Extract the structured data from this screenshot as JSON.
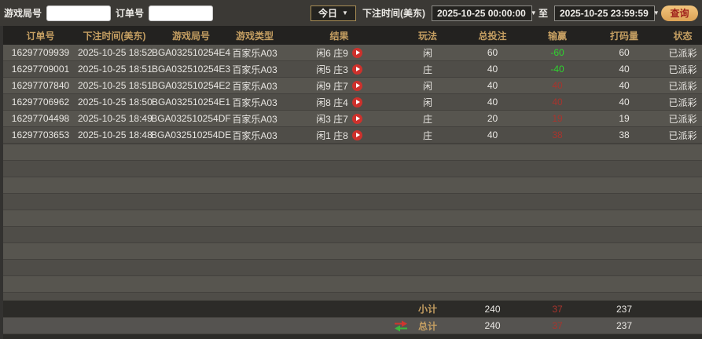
{
  "colors": {
    "accent_gold": "#c59f62",
    "win_red": "#a8342d",
    "lose_green": "#2fd32f",
    "query_button_bg": "#e9b468",
    "query_button_text": "#9e1f1b",
    "play_icon_red": "#ce312c"
  },
  "topbar": {
    "game_round_label": "游戏局号",
    "game_round_value": "",
    "order_no_label": "订单号",
    "order_no_value": "",
    "range_preset": "今日",
    "bet_time_label": "下注时间(美东)",
    "start_time": "2025-10-25 00:00:00",
    "to_label": "至",
    "end_time": "2025-10-25 23:59:59",
    "query_label": "查询"
  },
  "table": {
    "columns": [
      "订单号",
      "下注时间(美东)",
      "游戏局号",
      "游戏类型",
      "结果",
      "玩法",
      "总投注",
      "输赢",
      "打码量",
      "状态"
    ],
    "rows": [
      {
        "order_no": "16297709939",
        "bet_time": "2025-10-25 18:52",
        "game_round": "BGA032510254E4",
        "game_type": "百家乐A03",
        "result": "闲6 庄9",
        "play": "闲",
        "total_bet": "60",
        "win_lose": "-60",
        "win_lose_color": "green",
        "turnover": "60",
        "status": "已派彩"
      },
      {
        "order_no": "16297709001",
        "bet_time": "2025-10-25 18:51",
        "game_round": "BGA032510254E3",
        "game_type": "百家乐A03",
        "result": "闲5 庄3",
        "play": "庄",
        "total_bet": "40",
        "win_lose": "-40",
        "win_lose_color": "green",
        "turnover": "40",
        "status": "已派彩"
      },
      {
        "order_no": "16297707840",
        "bet_time": "2025-10-25 18:51",
        "game_round": "BGA032510254E2",
        "game_type": "百家乐A03",
        "result": "闲9 庄7",
        "play": "闲",
        "total_bet": "40",
        "win_lose": "40",
        "win_lose_color": "red",
        "turnover": "40",
        "status": "已派彩"
      },
      {
        "order_no": "16297706962",
        "bet_time": "2025-10-25 18:50",
        "game_round": "BGA032510254E1",
        "game_type": "百家乐A03",
        "result": "闲8 庄4",
        "play": "闲",
        "total_bet": "40",
        "win_lose": "40",
        "win_lose_color": "red",
        "turnover": "40",
        "status": "已派彩"
      },
      {
        "order_no": "16297704498",
        "bet_time": "2025-10-25 18:49",
        "game_round": "BGA032510254DF",
        "game_type": "百家乐A03",
        "result": "闲3 庄7",
        "play": "庄",
        "total_bet": "20",
        "win_lose": "19",
        "win_lose_color": "red",
        "turnover": "19",
        "status": "已派彩"
      },
      {
        "order_no": "16297703653",
        "bet_time": "2025-10-25 18:48",
        "game_round": "BGA032510254DE",
        "game_type": "百家乐A03",
        "result": "闲1 庄8",
        "play": "庄",
        "total_bet": "40",
        "win_lose": "38",
        "win_lose_color": "red",
        "turnover": "38",
        "status": "已派彩"
      }
    ],
    "subtotal": {
      "label": "小计",
      "total_bet": "240",
      "win_lose": "37",
      "turnover": "237"
    },
    "total": {
      "label": "总计",
      "total_bet": "240",
      "win_lose": "37",
      "turnover": "237"
    }
  }
}
